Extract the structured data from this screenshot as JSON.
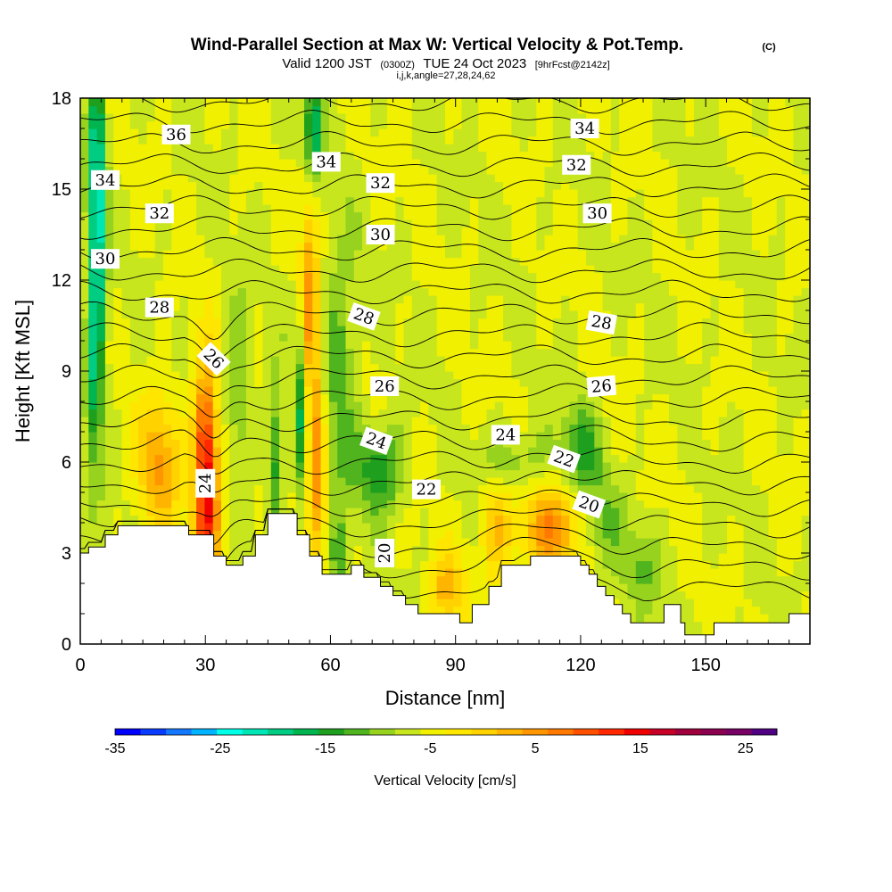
{
  "chart_data": {
    "type": "heatmap",
    "title": "Wind-Parallel Section at Max W: Vertical Velocity & Pot.Temp.",
    "title_mark": "(C)",
    "subtitle_main": "Valid 1200 JST",
    "subtitle_small1": "(0300Z)",
    "subtitle_main2": "TUE 24 Oct 2023",
    "subtitle_small2": "[9hrFcst@2142z]",
    "subtitle_line3": "i,j,k,angle=27,28,24,62",
    "xlabel": "Distance [nm]",
    "ylabel": "Height [Kft MSL]",
    "xlim": [
      0,
      175
    ],
    "ylim": [
      0,
      18
    ],
    "x_ticks": [
      0,
      30,
      60,
      90,
      120,
      150
    ],
    "y_ticks": [
      0,
      3,
      6,
      9,
      12,
      15,
      18
    ],
    "x_tick_labels": [
      "0",
      "30",
      "60",
      "90",
      "120",
      "150"
    ],
    "y_tick_labels": [
      "0",
      "3",
      "6",
      "9",
      "12",
      "15",
      "18"
    ],
    "colorbar": {
      "title": "Vertical Velocity [cm/s]",
      "min": -35,
      "max": 28,
      "step": 3,
      "tick_values": [
        -35,
        -25,
        -15,
        -5,
        5,
        15,
        25
      ],
      "tick_labels": [
        "-35",
        "-25",
        "-15",
        "-5",
        "5",
        "15",
        "25"
      ],
      "colors": [
        "#0000ff",
        "#0a3cff",
        "#1478ff",
        "#00b4ff",
        "#00ffe6",
        "#00e6b4",
        "#00cc82",
        "#00b450",
        "#1ea01e",
        "#50b41e",
        "#96d21e",
        "#c8e61e",
        "#f0f000",
        "#ffe600",
        "#ffd200",
        "#ffb400",
        "#ff9600",
        "#ff7800",
        "#ff5000",
        "#ff2800",
        "#f00000",
        "#c80028",
        "#a0003c",
        "#8c0050",
        "#780064",
        "#500082"
      ]
    },
    "terrain_kft": [
      [
        0,
        3.0
      ],
      [
        2,
        3.0
      ],
      [
        2,
        3.2
      ],
      [
        6,
        3.2
      ],
      [
        6,
        3.6
      ],
      [
        9,
        3.6
      ],
      [
        9,
        3.9
      ],
      [
        26,
        3.9
      ],
      [
        26,
        3.6
      ],
      [
        32,
        3.6
      ],
      [
        32,
        2.9
      ],
      [
        35,
        2.9
      ],
      [
        35,
        2.6
      ],
      [
        39,
        2.6
      ],
      [
        39,
        2.9
      ],
      [
        42,
        2.9
      ],
      [
        42,
        3.6
      ],
      [
        45,
        3.6
      ],
      [
        45,
        4.3
      ],
      [
        52,
        4.3
      ],
      [
        52,
        3.6
      ],
      [
        55,
        3.6
      ],
      [
        55,
        2.9
      ],
      [
        58,
        2.9
      ],
      [
        58,
        2.3
      ],
      [
        65,
        2.3
      ],
      [
        65,
        2.6
      ],
      [
        68,
        2.6
      ],
      [
        68,
        2.2
      ],
      [
        72,
        2.2
      ],
      [
        72,
        1.9
      ],
      [
        75,
        1.9
      ],
      [
        75,
        1.6
      ],
      [
        78,
        1.6
      ],
      [
        78,
        1.3
      ],
      [
        81,
        1.3
      ],
      [
        81,
        1.0
      ],
      [
        91,
        1.0
      ],
      [
        91,
        0.7
      ],
      [
        94,
        0.7
      ],
      [
        94,
        1.3
      ],
      [
        98,
        1.3
      ],
      [
        98,
        1.9
      ],
      [
        101,
        1.9
      ],
      [
        101,
        2.6
      ],
      [
        108,
        2.6
      ],
      [
        108,
        2.9
      ],
      [
        120,
        2.9
      ],
      [
        120,
        2.6
      ],
      [
        122,
        2.6
      ],
      [
        122,
        2.3
      ],
      [
        124,
        2.3
      ],
      [
        124,
        1.9
      ],
      [
        126,
        1.9
      ],
      [
        126,
        1.6
      ],
      [
        128,
        1.6
      ],
      [
        128,
        1.3
      ],
      [
        130,
        1.3
      ],
      [
        130,
        1.0
      ],
      [
        132,
        1.0
      ],
      [
        132,
        0.7
      ],
      [
        140,
        0.7
      ],
      [
        140,
        1.3
      ],
      [
        144,
        1.3
      ],
      [
        144,
        0.7
      ],
      [
        145,
        0.7
      ],
      [
        145,
        0.3
      ],
      [
        152,
        0.3
      ],
      [
        152,
        0.7
      ],
      [
        170,
        0.7
      ],
      [
        170,
        1.0
      ],
      [
        175,
        1.0
      ]
    ],
    "vertical_velocity_features": [
      {
        "x": 30,
        "y": 6.5,
        "sx": 2.0,
        "sy": 2.0,
        "w": 22
      },
      {
        "x": 31,
        "y": 5.0,
        "sx": 1.8,
        "sy": 1.3,
        "w": 9
      },
      {
        "x": 19,
        "y": 6.0,
        "sx": 3.5,
        "sy": 1.6,
        "w": 12
      },
      {
        "x": 55,
        "y": 10.5,
        "sx": 1.5,
        "sy": 3.0,
        "w": 14
      },
      {
        "x": 57,
        "y": 6.0,
        "sx": 1.5,
        "sy": 2.0,
        "w": 14
      },
      {
        "x": 113,
        "y": 3.8,
        "sx": 5.0,
        "sy": 1.0,
        "w": 14
      },
      {
        "x": 100,
        "y": 3.8,
        "sx": 3.0,
        "sy": 1.2,
        "w": 9
      },
      {
        "x": 88,
        "y": 1.8,
        "sx": 3.0,
        "sy": 0.8,
        "w": 10
      },
      {
        "x": 30,
        "y": 3.2,
        "sx": 2.5,
        "sy": 1.0,
        "w": 10
      },
      {
        "x": 4,
        "y": 14.0,
        "sx": 1.5,
        "sy": 4.0,
        "w": -22
      },
      {
        "x": 3,
        "y": 8.5,
        "sx": 1.3,
        "sy": 2.0,
        "w": -8
      },
      {
        "x": 56,
        "y": 17.0,
        "sx": 1.5,
        "sy": 1.2,
        "w": -16
      },
      {
        "x": 53,
        "y": 7.5,
        "sx": 1.2,
        "sy": 2.0,
        "w": -14
      },
      {
        "x": 38,
        "y": 8.5,
        "sx": 2.0,
        "sy": 2.0,
        "w": -7
      },
      {
        "x": 72,
        "y": 5.8,
        "sx": 4.0,
        "sy": 1.0,
        "w": -12
      },
      {
        "x": 62,
        "y": 9.0,
        "sx": 3.0,
        "sy": 3.0,
        "w": -8
      },
      {
        "x": 47,
        "y": 6.0,
        "sx": 1.2,
        "sy": 1.8,
        "w": -11
      },
      {
        "x": 120,
        "y": 6.5,
        "sx": 3.0,
        "sy": 1.0,
        "w": -10
      },
      {
        "x": 125,
        "y": 4.0,
        "sx": 4.0,
        "sy": 1.2,
        "w": -6
      },
      {
        "x": 135,
        "y": 2.5,
        "sx": 3.0,
        "sy": 1.0,
        "w": -6
      },
      {
        "x": 105,
        "y": 6.0,
        "sx": 6.0,
        "sy": 0.8,
        "w": -6
      },
      {
        "x": 62,
        "y": 2.8,
        "sx": 1.5,
        "sy": 1.0,
        "w": -8
      }
    ],
    "theta_contour_labels": [
      {
        "text": "36",
        "x": 23,
        "y": 16.8,
        "angle": 0
      },
      {
        "text": "34",
        "x": 6,
        "y": 15.3,
        "angle": 0
      },
      {
        "text": "34",
        "x": 59,
        "y": 15.9,
        "angle": 0
      },
      {
        "text": "34",
        "x": 121,
        "y": 17.0,
        "angle": 0
      },
      {
        "text": "32",
        "x": 19,
        "y": 14.2,
        "angle": 0
      },
      {
        "text": "32",
        "x": 72,
        "y": 15.2,
        "angle": 0
      },
      {
        "text": "32",
        "x": 119,
        "y": 15.8,
        "angle": 0
      },
      {
        "text": "30",
        "x": 6,
        "y": 12.7,
        "angle": 0
      },
      {
        "text": "30",
        "x": 72,
        "y": 13.5,
        "angle": 0
      },
      {
        "text": "30",
        "x": 124,
        "y": 14.2,
        "angle": 0
      },
      {
        "text": "28",
        "x": 19,
        "y": 11.1,
        "angle": 0
      },
      {
        "text": "28",
        "x": 68,
        "y": 10.8,
        "angle": 20
      },
      {
        "text": "28",
        "x": 125,
        "y": 10.6,
        "angle": 10
      },
      {
        "text": "26",
        "x": 32,
        "y": 9.4,
        "angle": 45
      },
      {
        "text": "26",
        "x": 73,
        "y": 8.5,
        "angle": 0
      },
      {
        "text": "26",
        "x": 125,
        "y": 8.5,
        "angle": -5
      },
      {
        "text": "24",
        "x": 71,
        "y": 6.7,
        "angle": 20
      },
      {
        "text": "24",
        "x": 102,
        "y": 6.9,
        "angle": 0
      },
      {
        "text": "24",
        "x": 30,
        "y": 5.3,
        "angle": -90
      },
      {
        "text": "22",
        "x": 83,
        "y": 5.1,
        "angle": 0
      },
      {
        "text": "22",
        "x": 116,
        "y": 6.1,
        "angle": 20
      },
      {
        "text": "20",
        "x": 73,
        "y": 3.0,
        "angle": -90
      },
      {
        "text": "20",
        "x": 122,
        "y": 4.6,
        "angle": 20
      }
    ]
  }
}
